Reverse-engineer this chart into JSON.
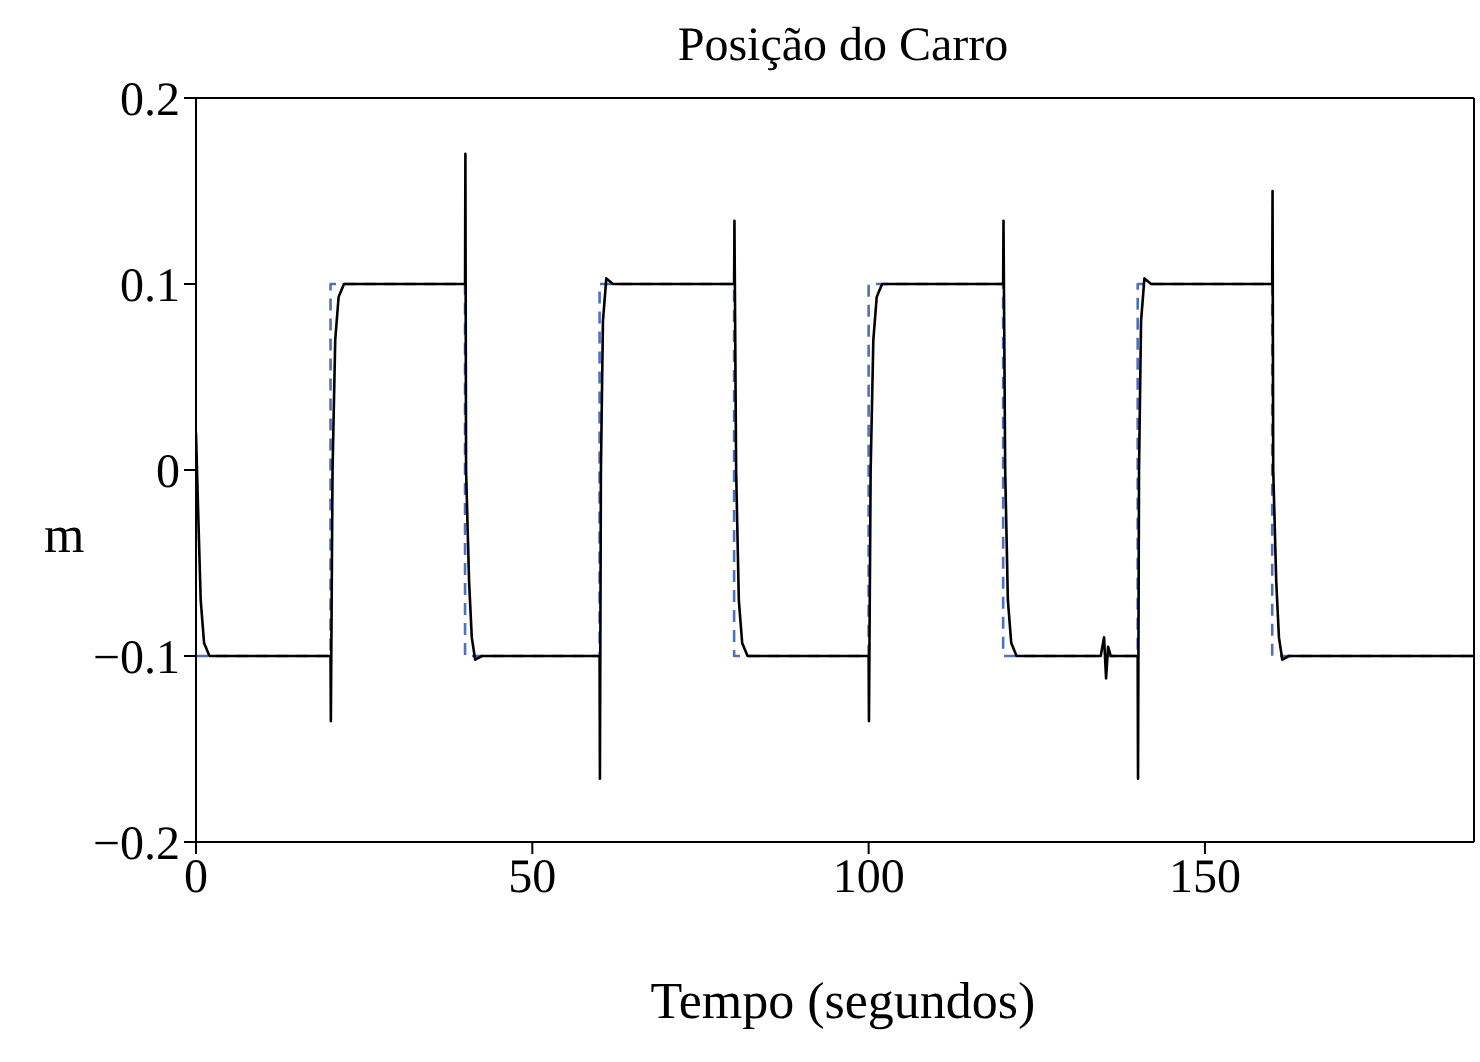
{
  "chart_data": {
    "type": "line",
    "title": "Posição do Carro",
    "xlabel": "Tempo (segundos)",
    "ylabel": "m",
    "xlim": [
      0,
      190
    ],
    "ylim": [
      -0.2,
      0.2
    ],
    "xticks": [
      0,
      50,
      100,
      150
    ],
    "yticks": [
      {
        "value": -0.2,
        "label": "−0.2"
      },
      {
        "value": -0.1,
        "label": "−0.1"
      },
      0,
      0.1,
      0.2
    ],
    "marker": "none",
    "series": [
      {
        "type": "step",
        "color": "#4f6fbf",
        "line_style": "dashed",
        "x": [
          0,
          20,
          40,
          60,
          80,
          100,
          120,
          140,
          160,
          190
        ],
        "values": [
          -0.1,
          0.1,
          -0.1,
          0.1,
          -0.1,
          0.1,
          -0.1,
          0.1,
          -0.1,
          -0.1
        ]
      },
      {
        "color": "#000000",
        "line_style": "solid",
        "x": [
          0,
          0.3,
          0.7,
          1.2,
          2,
          20,
          20.05,
          20.3,
          20.7,
          21.2,
          22,
          40,
          40.05,
          40.15,
          40.6,
          41,
          41.5,
          42.5,
          60,
          60.05,
          60.2,
          60.5,
          61,
          62,
          80,
          80.05,
          80.3,
          80.7,
          81.2,
          82,
          100,
          100.05,
          100.3,
          100.7,
          101.2,
          102,
          120,
          120.05,
          120.3,
          120.7,
          121.2,
          122,
          134.5,
          135,
          135.3,
          135.6,
          136,
          140,
          140.05,
          140.2,
          140.5,
          141,
          142,
          160,
          160.05,
          160.15,
          160.6,
          161,
          161.5,
          162.5,
          190
        ],
        "values": [
          0.02,
          -0.02,
          -0.07,
          -0.093,
          -0.1,
          -0.1,
          -0.135,
          0,
          0.07,
          0.093,
          0.1,
          0.1,
          0.17,
          0,
          -0.06,
          -0.09,
          -0.102,
          -0.1,
          -0.1,
          -0.166,
          0,
          0.08,
          0.103,
          0.1,
          0.1,
          0.134,
          0,
          -0.07,
          -0.093,
          -0.1,
          -0.1,
          -0.135,
          0,
          0.07,
          0.093,
          0.1,
          0.1,
          0.134,
          0,
          -0.07,
          -0.093,
          -0.1,
          -0.1,
          -0.09,
          -0.112,
          -0.095,
          -0.1,
          -0.1,
          -0.166,
          0,
          0.08,
          0.103,
          0.1,
          0.1,
          0.15,
          0,
          -0.06,
          -0.09,
          -0.102,
          -0.1,
          -0.1
        ]
      }
    ]
  }
}
